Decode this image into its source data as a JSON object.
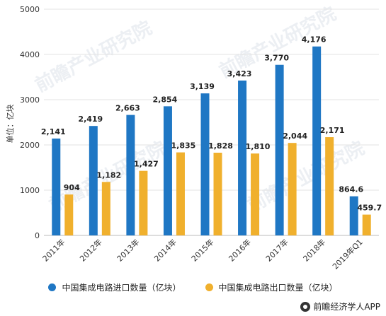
{
  "chart_data": {
    "type": "bar",
    "categories": [
      "2011年",
      "2012年",
      "2013年",
      "2014年",
      "2015年",
      "2016年",
      "2017年",
      "2018年",
      "2019年Q1"
    ],
    "series": [
      {
        "name": "中国集成电路进口数量（亿块）",
        "values": [
          2141,
          2419,
          2663,
          2854,
          3139,
          3423,
          3770,
          4176,
          864.6
        ],
        "labels": [
          "2,141",
          "2,419",
          "2,663",
          "2,854",
          "3,139",
          "3,423",
          "3,770",
          "4,176",
          "864.6"
        ],
        "color": "#1f77c4"
      },
      {
        "name": "中国集成电路出口数量（亿块）",
        "values": [
          904,
          1182,
          1427,
          1835,
          1828,
          1810,
          2044,
          2171,
          459.7
        ],
        "labels": [
          "904",
          "1,182",
          "1,427",
          "1,835",
          "1,828",
          "1,810",
          "2,044",
          "2,171",
          "459.7"
        ],
        "color": "#f0b02d"
      }
    ],
    "ylabel": "单位：亿块",
    "ylim": [
      0,
      5000
    ],
    "yticks": [
      0,
      1000,
      2000,
      3000,
      4000,
      5000
    ],
    "grid": true,
    "legend_position": "bottom"
  },
  "source": "前瞻经济学人APP",
  "watermark": "前瞻产业研究院"
}
